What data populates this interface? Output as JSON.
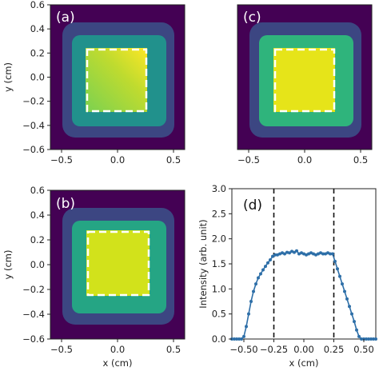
{
  "chart_data": [
    {
      "type": "heatmap",
      "panel": "(a)",
      "description_values": "intensity map, square beam spot, brighter toward upper-right",
      "xlim": [
        -0.6,
        0.6
      ],
      "ylim": [
        -0.6,
        0.6
      ],
      "xticks": [
        "-0.5",
        "0.0",
        "0.5"
      ],
      "yticks": [
        "0.6",
        "0.4",
        "0.2",
        "0.0",
        "-0.2",
        "-0.4",
        "-0.6"
      ],
      "xlabel": "",
      "ylabel": "y (cm)",
      "dashed_box": [
        -0.25,
        0.25,
        -0.25,
        0.25
      ],
      "colormap": "viridis"
    },
    {
      "type": "heatmap",
      "panel": "(c)",
      "xlim": [
        -0.6,
        0.6
      ],
      "ylim": [
        -0.6,
        0.6
      ],
      "xticks": [
        "-0.5",
        "0.0",
        "0.5"
      ],
      "yticks": [],
      "xlabel": "",
      "ylabel": "",
      "dashed_box": [
        -0.25,
        0.25,
        -0.25,
        0.25
      ],
      "colormap": "viridis"
    },
    {
      "type": "heatmap",
      "panel": "(b)",
      "xlim": [
        -0.6,
        0.6
      ],
      "ylim": [
        -0.6,
        0.6
      ],
      "xticks": [
        "-0.5",
        "0.0",
        "0.5"
      ],
      "yticks": [
        "0.6",
        "0.4",
        "0.2",
        "0.0",
        "-0.2",
        "-0.4",
        "-0.6"
      ],
      "xlabel": "x (cm)",
      "ylabel": "y (cm)",
      "dashed_box": [
        -0.25,
        0.25,
        -0.25,
        0.25
      ],
      "colormap": "viridis"
    },
    {
      "type": "line",
      "panel": "(d)",
      "xlim": [
        -0.6,
        0.6
      ],
      "ylim": [
        0,
        3.0
      ],
      "xticks": [
        "-0.50",
        "-0.25",
        "0.00",
        "0.25",
        "0.50"
      ],
      "yticks": [
        "3.0",
        "2.5",
        "2.0",
        "1.5",
        "1.0",
        "0.5",
        "0.0"
      ],
      "xlabel": "x (cm)",
      "ylabel": "Intensity (arb. unit)",
      "vlines": [
        -0.25,
        0.25
      ],
      "series": [
        {
          "color": "#2e6fa8",
          "x": [
            -0.6,
            -0.58,
            -0.56,
            -0.54,
            -0.52,
            -0.5,
            -0.48,
            -0.46,
            -0.44,
            -0.42,
            -0.4,
            -0.38,
            -0.36,
            -0.34,
            -0.32,
            -0.3,
            -0.28,
            -0.26,
            -0.24,
            -0.22,
            -0.2,
            -0.18,
            -0.16,
            -0.14,
            -0.12,
            -0.1,
            -0.08,
            -0.06,
            -0.04,
            -0.02,
            0.0,
            0.02,
            0.04,
            0.06,
            0.08,
            0.1,
            0.12,
            0.14,
            0.16,
            0.18,
            0.2,
            0.22,
            0.24,
            0.26,
            0.28,
            0.3,
            0.32,
            0.34,
            0.36,
            0.38,
            0.4,
            0.42,
            0.44,
            0.46,
            0.48,
            0.5,
            0.52,
            0.54,
            0.56,
            0.58,
            0.6
          ],
          "y": [
            0.0,
            0.0,
            0.0,
            0.0,
            0.0,
            0.05,
            0.25,
            0.5,
            0.75,
            0.95,
            1.1,
            1.22,
            1.3,
            1.38,
            1.45,
            1.52,
            1.58,
            1.65,
            1.68,
            1.68,
            1.7,
            1.72,
            1.7,
            1.73,
            1.72,
            1.75,
            1.73,
            1.76,
            1.7,
            1.72,
            1.7,
            1.68,
            1.7,
            1.72,
            1.7,
            1.68,
            1.7,
            1.72,
            1.7,
            1.7,
            1.72,
            1.7,
            1.7,
            1.55,
            1.4,
            1.25,
            1.1,
            0.95,
            0.8,
            0.65,
            0.5,
            0.35,
            0.18,
            0.05,
            0.0,
            0.0,
            0.0,
            0.0,
            0.0,
            0.0,
            0.0
          ]
        }
      ]
    }
  ]
}
